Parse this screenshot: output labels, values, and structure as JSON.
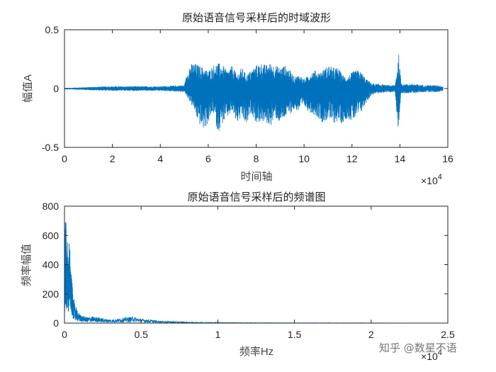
{
  "chart_data": [
    {
      "type": "line",
      "title": "原始语音信号采样后的时域波形",
      "xlabel": "时间轴",
      "ylabel": "幅值A",
      "xlim": [
        0,
        160000
      ],
      "ylim": [
        -0.5,
        0.5
      ],
      "x_ticks": [
        0,
        2,
        4,
        6,
        8,
        10,
        12,
        14,
        16
      ],
      "x_tick_labels": [
        "0",
        "2",
        "4",
        "6",
        "8",
        "10",
        "12",
        "14",
        "16"
      ],
      "x_exponent_label": "×10",
      "x_exponent_power": "4",
      "y_ticks": [
        -0.5,
        0,
        0.5
      ],
      "y_tick_labels": [
        "-0.5",
        "0",
        "0.5"
      ],
      "color": "#0072bd",
      "envelope": {
        "x": [
          0,
          12000,
          20000,
          30000,
          40000,
          50000,
          52000,
          54000,
          56000,
          58000,
          60000,
          62000,
          64000,
          66000,
          68000,
          70000,
          72000,
          74000,
          76000,
          78000,
          80000,
          82000,
          84000,
          86000,
          88000,
          90000,
          92000,
          94000,
          96000,
          98000,
          100000,
          102000,
          104000,
          106000,
          108000,
          110000,
          112000,
          114000,
          116000,
          118000,
          120000,
          122000,
          124000,
          126000,
          128000,
          130000,
          132000,
          134000,
          136000,
          138000,
          139500,
          140500,
          142000,
          146000,
          150000,
          156000,
          158000
        ],
        "upper": [
          0.005,
          0.015,
          0.02,
          0.02,
          0.02,
          0.03,
          0.2,
          0.22,
          0.2,
          0.18,
          0.15,
          0.2,
          0.22,
          0.2,
          0.15,
          0.2,
          0.12,
          0.18,
          0.12,
          0.16,
          0.2,
          0.22,
          0.2,
          0.22,
          0.2,
          0.18,
          0.2,
          0.16,
          0.1,
          0.12,
          0.08,
          0.12,
          0.16,
          0.14,
          0.16,
          0.2,
          0.18,
          0.18,
          0.12,
          0.1,
          0.14,
          0.16,
          0.14,
          0.08,
          0.05,
          0.04,
          0.04,
          0.03,
          0.03,
          0.03,
          0.3,
          0.05,
          0.04,
          0.04,
          0.03,
          0.03,
          0.02
        ],
        "lower": [
          -0.005,
          -0.015,
          -0.02,
          -0.02,
          -0.02,
          -0.03,
          -0.1,
          -0.18,
          -0.3,
          -0.35,
          -0.3,
          -0.2,
          -0.38,
          -0.3,
          -0.25,
          -0.2,
          -0.3,
          -0.25,
          -0.32,
          -0.2,
          -0.3,
          -0.28,
          -0.3,
          -0.32,
          -0.25,
          -0.3,
          -0.25,
          -0.22,
          -0.18,
          -0.2,
          -0.15,
          -0.2,
          -0.22,
          -0.25,
          -0.3,
          -0.26,
          -0.3,
          -0.28,
          -0.3,
          -0.25,
          -0.28,
          -0.25,
          -0.2,
          -0.12,
          -0.06,
          -0.04,
          -0.04,
          -0.03,
          -0.03,
          -0.03,
          -0.45,
          -0.05,
          -0.04,
          -0.04,
          -0.03,
          -0.03,
          -0.02
        ]
      }
    },
    {
      "type": "line",
      "title": "原始语音信号采样后的频谱图",
      "xlabel": "频率Hz",
      "ylabel": "频率幅值",
      "xlim": [
        0,
        25000
      ],
      "ylim": [
        0,
        800
      ],
      "x_ticks": [
        0,
        0.5,
        1,
        1.5,
        2,
        2.5
      ],
      "x_tick_labels": [
        "0",
        "0.5",
        "1",
        "1.5",
        "2",
        "2.5"
      ],
      "x_exponent_label": "×10",
      "x_exponent_power": "4",
      "y_ticks": [
        0,
        200,
        400,
        600,
        800
      ],
      "y_tick_labels": [
        "0",
        "200",
        "400",
        "600",
        "800"
      ],
      "color": "#0072bd",
      "peaks": {
        "x": [
          0,
          50,
          100,
          150,
          200,
          260,
          320,
          400,
          480,
          560,
          650,
          740,
          850,
          1000,
          1200,
          1500,
          1800,
          2200,
          2600,
          3000,
          3500,
          4000,
          4500,
          5000,
          5500,
          6000,
          6500,
          7000,
          8000,
          10000,
          12000,
          15000,
          18000,
          22000,
          22050
        ],
        "y": [
          300,
          740,
          700,
          480,
          600,
          420,
          610,
          380,
          300,
          200,
          140,
          120,
          80,
          60,
          50,
          40,
          45,
          40,
          30,
          25,
          30,
          40,
          45,
          30,
          25,
          18,
          15,
          12,
          8,
          5,
          3,
          2,
          2,
          1,
          0
        ]
      }
    }
  ],
  "watermark": "知乎 @数星不语"
}
